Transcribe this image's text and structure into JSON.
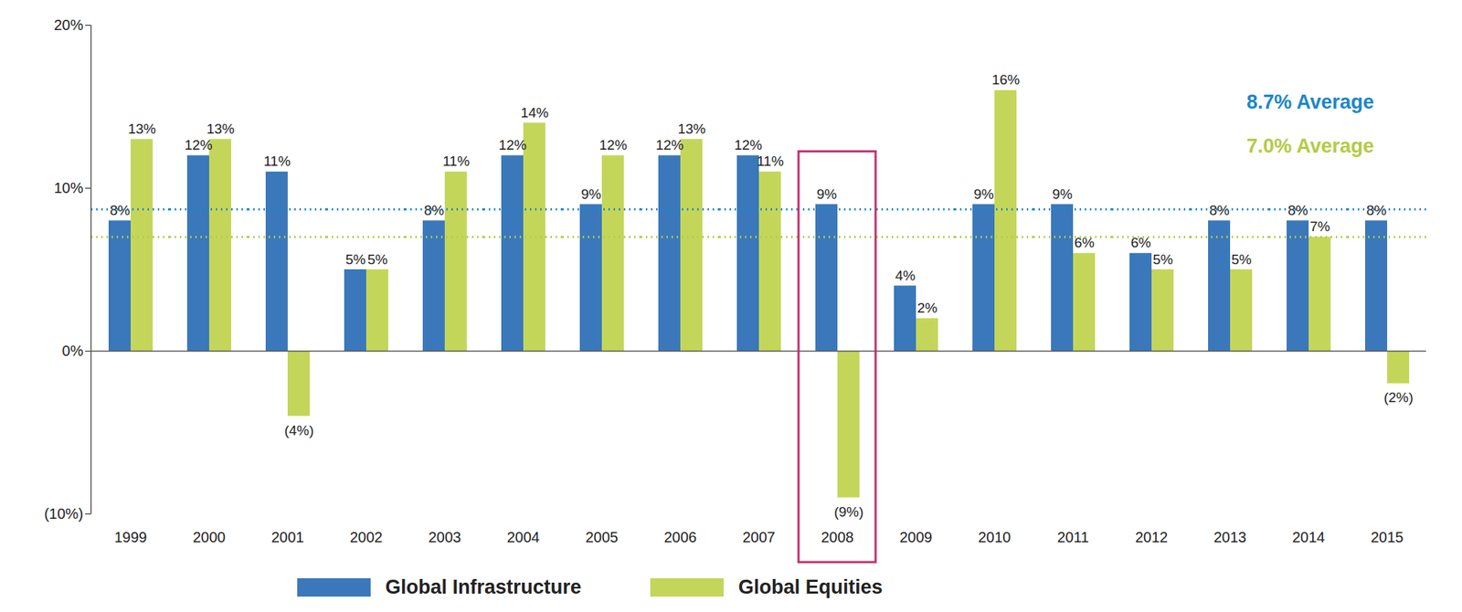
{
  "chart_data": {
    "type": "bar",
    "categories": [
      "1999",
      "2000",
      "2001",
      "2002",
      "2003",
      "2004",
      "2005",
      "2006",
      "2007",
      "2008",
      "2009",
      "2010",
      "2011",
      "2012",
      "2013",
      "2014",
      "2015"
    ],
    "series": [
      {
        "name": "Global Infrastructure",
        "color": "#3a78bb",
        "values": [
          8,
          12,
          11,
          5,
          8,
          12,
          9,
          12,
          12,
          9,
          4,
          9,
          9,
          6,
          8,
          8,
          8
        ],
        "value_labels": [
          "8%",
          "12%",
          "11%",
          "5%",
          "8%",
          "12%",
          "9%",
          "12%",
          "12%",
          "9%",
          "4%",
          "9%",
          "9%",
          "6%",
          "8%",
          "8%",
          "8%"
        ]
      },
      {
        "name": "Global Equities",
        "color": "#c4d65a",
        "values": [
          13,
          13,
          -4,
          5,
          11,
          14,
          12,
          13,
          11,
          -9,
          2,
          16,
          6,
          5,
          5,
          7,
          -2
        ],
        "value_labels": [
          "13%",
          "13%",
          "(4%)",
          "5%",
          "11%",
          "14%",
          "12%",
          "13%",
          "11%",
          "(9%)",
          "2%",
          "16%",
          "6%",
          "5%",
          "5%",
          "7%",
          "(2%)"
        ]
      }
    ],
    "ylim": [
      -10,
      20
    ],
    "yticks": [
      {
        "value": -10,
        "label": "(10%)"
      },
      {
        "value": 0,
        "label": "0%"
      },
      {
        "value": 10,
        "label": "10%"
      },
      {
        "value": 20,
        "label": "20%"
      }
    ],
    "data_labels": true,
    "grid": false,
    "legend": "bottom",
    "reference_lines": [
      {
        "value": 8.7,
        "label": "8.7% Average",
        "color": "#1a87c9"
      },
      {
        "value": 7.0,
        "label": "7.0% Average",
        "color": "#b3cb44"
      }
    ],
    "highlight": {
      "category": "2008",
      "color": "#c2306d"
    }
  }
}
